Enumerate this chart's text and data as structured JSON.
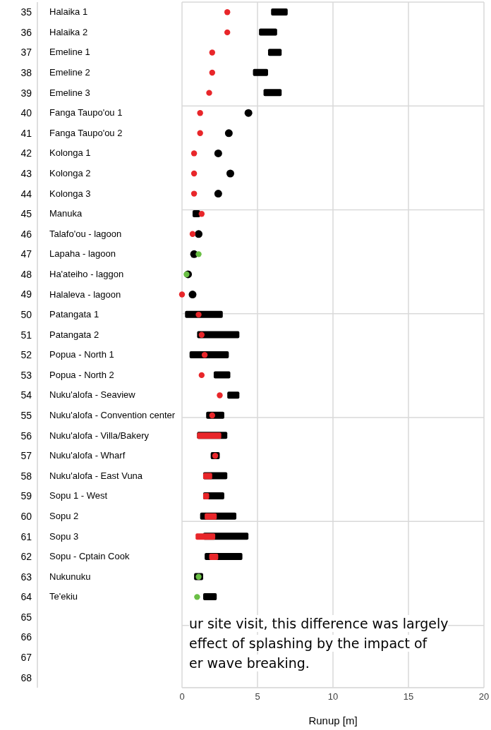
{
  "chart_data": {
    "type": "bar",
    "orientation": "horizontal",
    "xlabel": "Runup [m]",
    "categories": [
      "Halaika 1",
      "Halaika 2",
      "Emeline 1",
      "Emeline 2",
      "Emeline 3",
      "Fanga Taupo'ou 1",
      "Fanga Taupo'ou 2",
      "Kolonga 1",
      "Kolonga 2",
      "Kolonga 3",
      "Manuka",
      "Talafo'ou - lagoon",
      "Lapaha - lagoon",
      "Ha'ateiho - laggon",
      "Halaleva - lagoon",
      "Patangata 1",
      "Patangata 2",
      "Popua - North 1",
      "Popua - North 2",
      "Nuku'alofa - Seaview",
      "Nuku'alofa - Convention center",
      "Nuku'alofa - Villa/Bakery",
      "Nuku'alofa - Wharf",
      "Nuku'alofa - East Vuna",
      "Sopu 1 - West",
      "Sopu 2",
      "Sopu 3",
      "Sopu - Cptain Cook",
      "Nukunuku",
      "Te'ekiu",
      null,
      null,
      null,
      null
    ],
    "y2_categories": [
      "35",
      "36",
      "37",
      "38",
      "39",
      "40",
      "41",
      "42",
      "43",
      "44",
      "45",
      "46",
      "47",
      "48",
      "49",
      "50",
      "51",
      "52",
      "53",
      "54",
      "55",
      "56",
      "57",
      "58",
      "59",
      "60",
      "61",
      "62",
      "63",
      "64",
      "65",
      "66",
      "67",
      "68"
    ],
    "series": [
      {
        "type": "bar",
        "color": "#000000",
        "base": [
          5.9,
          5.1,
          5.7,
          4.7,
          5.4,
          null,
          null,
          null,
          null,
          null,
          0.7,
          null,
          null,
          null,
          null,
          0.2,
          1.0,
          0.5,
          2.1,
          3.0,
          1.6,
          1.0,
          1.9,
          1.4,
          1.4,
          1.2,
          1.4,
          1.5,
          0.8,
          1.4,
          null,
          null,
          null,
          null
        ],
        "values": [
          1.1,
          1.2,
          0.9,
          1.0,
          1.2,
          null,
          null,
          null,
          null,
          null,
          0.5,
          null,
          null,
          null,
          null,
          2.5,
          2.8,
          2.6,
          1.1,
          0.8,
          1.2,
          2.0,
          0.6,
          1.6,
          1.4,
          2.4,
          3.0,
          2.5,
          0.6,
          0.9,
          null,
          null,
          null,
          null
        ]
      },
      {
        "type": "scatter",
        "color": "#000000",
        "values": [
          null,
          null,
          null,
          null,
          null,
          4.4,
          3.1,
          2.4,
          3.2,
          2.4,
          null,
          1.1,
          0.8,
          0.4,
          0.7,
          null,
          null,
          null,
          null,
          null,
          null,
          null,
          null,
          null,
          null,
          null,
          null,
          null,
          null,
          null,
          null,
          null,
          null,
          null
        ]
      },
      {
        "type": "bar",
        "color": "#e8262a",
        "base": [
          null,
          null,
          null,
          null,
          null,
          null,
          null,
          null,
          null,
          null,
          null,
          null,
          null,
          null,
          null,
          null,
          null,
          null,
          null,
          null,
          null,
          1.0,
          null,
          1.4,
          1.4,
          1.5,
          0.9,
          1.8,
          null,
          null,
          null,
          null,
          null,
          null
        ],
        "values": [
          null,
          null,
          null,
          null,
          null,
          null,
          null,
          null,
          null,
          null,
          null,
          null,
          null,
          null,
          null,
          null,
          null,
          null,
          null,
          null,
          null,
          1.6,
          null,
          0.6,
          0.4,
          0.8,
          1.3,
          0.6,
          null,
          null,
          null,
          null,
          null,
          null
        ]
      },
      {
        "type": "scatter",
        "color": "#e8262a",
        "values": [
          3.0,
          3.0,
          2.0,
          2.0,
          1.8,
          1.2,
          1.2,
          0.8,
          0.8,
          0.8,
          1.3,
          0.7,
          null,
          null,
          0.0,
          1.1,
          1.3,
          1.5,
          1.3,
          2.5,
          2.0,
          null,
          2.2,
          null,
          null,
          null,
          null,
          null,
          null,
          null,
          null,
          null,
          null,
          null
        ]
      },
      {
        "type": "scatter",
        "color": "#6abf45",
        "values": [
          null,
          null,
          null,
          null,
          null,
          null,
          null,
          null,
          null,
          null,
          null,
          null,
          1.1,
          0.3,
          null,
          null,
          null,
          null,
          null,
          null,
          null,
          null,
          null,
          null,
          null,
          null,
          null,
          null,
          1.1,
          1.0,
          null,
          null,
          null,
          null
        ]
      }
    ],
    "xlim": [
      0,
      20
    ],
    "xticks": [
      0,
      5,
      10,
      15,
      20
    ],
    "grid": true,
    "annotations": [
      "ur site visit, this difference was largely",
      "effect of splashing by the impact of",
      "er wave breaking."
    ]
  }
}
